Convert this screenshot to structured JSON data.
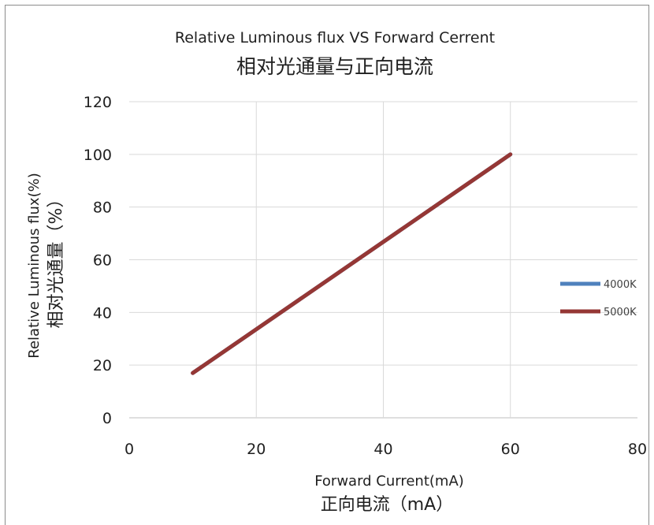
{
  "chart_data": {
    "type": "line",
    "title": "Relative Luminous flux VS Forward Cerrent",
    "subtitle": "相对光通量与正向电流",
    "xlabel": "Forward Current(mA)",
    "xlabel_zh": "正向电流（mA）",
    "ylabel": "Relative Luminous flux(%)",
    "ylabel_zh": "相对光通量（%）",
    "xlim": [
      0,
      80
    ],
    "ylim": [
      0,
      120
    ],
    "xticks": [
      "0",
      "20",
      "40",
      "60",
      "80"
    ],
    "yticks": [
      "0",
      "20",
      "40",
      "60",
      "80",
      "100",
      "120"
    ],
    "grid": true,
    "legend_position": "right",
    "series": [
      {
        "name": "4000K",
        "color": "#4f81bd",
        "x": [
          10,
          60
        ],
        "y": [
          17,
          100
        ]
      },
      {
        "name": "5000K",
        "color": "#953735",
        "x": [
          10,
          60
        ],
        "y": [
          17,
          100
        ]
      }
    ]
  }
}
